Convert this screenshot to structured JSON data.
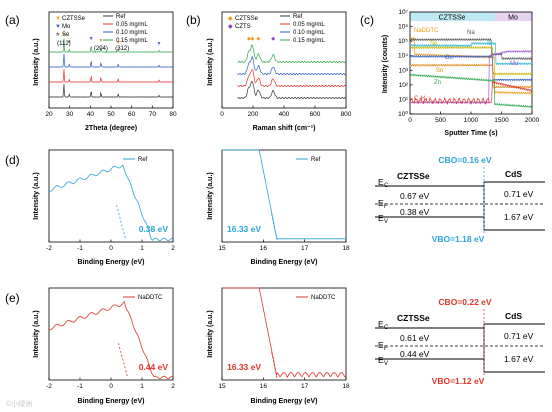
{
  "figure": {
    "panel_labels": [
      "(a)",
      "(b)",
      "(c)",
      "(d)",
      "(e)"
    ],
    "watermark": "©小绿洲"
  },
  "chart_data": [
    {
      "id": "a",
      "type": "line",
      "xlabel": "2Theta (degree)",
      "ylabel": "Intensity (a.u.)",
      "xlim": [
        20,
        80
      ],
      "xticks": [
        "20",
        "30",
        "40",
        "50",
        "60",
        "70",
        "80"
      ],
      "legend_markers": [
        {
          "label": "CZTSSe",
          "marker": "▼",
          "color": "#f29a1a"
        },
        {
          "label": "Mo",
          "marker": "▼",
          "color": "#3f5fc4"
        },
        {
          "label": "Se",
          "marker": "★",
          "color": "#7a7a7a"
        }
      ],
      "series": [
        {
          "name": "Ref",
          "color": "#333333"
        },
        {
          "name": "0.05 mg/mL",
          "color": "#e0352b"
        },
        {
          "name": "0.10 mg/mL",
          "color": "#2f5ec9"
        },
        {
          "name": "0.15 mg/mL",
          "color": "#2ea84a"
        }
      ],
      "peaks": [
        {
          "x": 27.2,
          "label": "(112)",
          "h": 1.0
        },
        {
          "x": 29.8,
          "label": "",
          "h": 0.2
        },
        {
          "x": 40.4,
          "label": "",
          "h": 0.45
        },
        {
          "x": 45.1,
          "label": "(204)",
          "h": 0.35
        },
        {
          "x": 53.5,
          "label": "(312)",
          "h": 0.22
        },
        {
          "x": 73.2,
          "label": "",
          "h": 0.12
        }
      ]
    },
    {
      "id": "b",
      "type": "line",
      "xlabel": "Raman shift (cm⁻¹)",
      "ylabel": "Intensity (a.u.)",
      "xlim": [
        0,
        800
      ],
      "xticks": [
        "0",
        "200",
        "400",
        "600",
        "800"
      ],
      "legend_markers": [
        {
          "label": "CZTSSe",
          "marker": "◆",
          "color": "#f29a1a"
        },
        {
          "label": "CZTS",
          "marker": "◆",
          "color": "#8b3fc4"
        }
      ],
      "series": [
        {
          "name": "Ref",
          "color": "#333333"
        },
        {
          "name": "0.05 mg/mL",
          "color": "#e0352b"
        },
        {
          "name": "0.10 mg/mL",
          "color": "#2f5ec9"
        },
        {
          "name": "0.15 mg/mL",
          "color": "#2ea84a"
        }
      ],
      "peaks": [
        {
          "x": 173,
          "h": 0.6
        },
        {
          "x": 196,
          "h": 1.0
        },
        {
          "x": 235,
          "h": 0.5
        },
        {
          "x": 330,
          "h": 0.45
        }
      ]
    },
    {
      "id": "c",
      "type": "line",
      "xlabel": "Sputter Time (s)",
      "ylabel": "Intensity (counts)",
      "xlim": [
        0,
        2000
      ],
      "xticks": [
        "0",
        "500",
        "1000",
        "1500",
        "2000"
      ],
      "yticks": [
        "10⁰",
        "10¹",
        "10²",
        "10³",
        "10⁴",
        "10⁵",
        "10⁶",
        "10⁷"
      ],
      "regions": [
        {
          "label": "CZTSSe",
          "color": "#bfe9f2"
        },
        {
          "label": "Mo",
          "color": "#e7d2f0"
        }
      ],
      "series": [
        {
          "name": "NaDDTC",
          "color": "#f29a1a"
        },
        {
          "name": "Na",
          "color": "#555555"
        },
        {
          "name": "S",
          "color": "#29b6d6"
        },
        {
          "name": "Se",
          "color": "#c9b400"
        },
        {
          "name": "Cu",
          "color": "#2f5ec9"
        },
        {
          "name": "Sn",
          "color": "#e08a1a"
        },
        {
          "name": "Mo",
          "color": "#a05ad6"
        },
        {
          "name": "Zn",
          "color": "#2ea84a"
        },
        {
          "name": "C₂H₃⁻",
          "color": "#e0352b"
        }
      ]
    },
    {
      "id": "d1",
      "type": "line",
      "xlabel": "Binding Energy (eV)",
      "ylabel": "Intensity (a.u.)",
      "xlim": [
        -2,
        2
      ],
      "xticks": [
        "-2",
        "-1",
        "0",
        "1",
        "2"
      ],
      "series": [
        {
          "name": "Ref",
          "color": "#2aa5d6"
        }
      ],
      "annotation": "0.38 eV"
    },
    {
      "id": "d2",
      "type": "line",
      "xlabel": "Binding Energy (eV)",
      "ylabel": "Intensity (a.u.)",
      "xlim": [
        15,
        18
      ],
      "xticks": [
        "15",
        "16",
        "17",
        "18"
      ],
      "series": [
        {
          "name": "Ref",
          "color": "#2aa5d6"
        }
      ],
      "annotation": "16.33 eV"
    },
    {
      "id": "e1",
      "type": "line",
      "xlabel": "Binding Energy (eV)",
      "ylabel": "Intensity (a.u.)",
      "xlim": [
        -2,
        2
      ],
      "xticks": [
        "-2",
        "-1",
        "0",
        "1",
        "2"
      ],
      "series": [
        {
          "name": "NaDDTC",
          "color": "#e0352b"
        }
      ],
      "annotation": "0.44 eV"
    },
    {
      "id": "e2",
      "type": "line",
      "xlabel": "Binding Energy (eV)",
      "ylabel": "Intensity (a.u.)",
      "xlim": [
        15,
        18
      ],
      "xticks": [
        "15",
        "16",
        "17",
        "18"
      ],
      "series": [
        {
          "name": "NaDDTC",
          "color": "#e0352b"
        }
      ],
      "annotation": "16.33 eV"
    }
  ],
  "band_diagrams": [
    {
      "id": "d",
      "accent": "#2aa5d6",
      "cbo": "CBO=0.16 eV",
      "vbo": "VBO=1.18 eV",
      "left_material": "CZTSSe",
      "right_material": "CdS",
      "ec_label": "E",
      "ec_sub": "C",
      "ef_label": "E",
      "ef_sub": "F",
      "ev_label": "E",
      "ev_sub": "V",
      "left_top": "0.67 eV",
      "left_bottom": "0.38 eV",
      "right_top": "0.71 eV",
      "right_bottom": "1.67 eV"
    },
    {
      "id": "e",
      "accent": "#e0352b",
      "cbo": "CBO=0.22 eV",
      "vbo": "VBO=1.12 eV",
      "left_material": "CZTSSe",
      "right_material": "CdS",
      "ec_label": "E",
      "ec_sub": "C",
      "ef_label": "E",
      "ef_sub": "F",
      "ev_label": "E",
      "ev_sub": "V",
      "left_top": "0.61 eV",
      "left_bottom": "0.44 eV",
      "right_top": "0.71 eV",
      "right_bottom": "1.67 eV"
    }
  ]
}
